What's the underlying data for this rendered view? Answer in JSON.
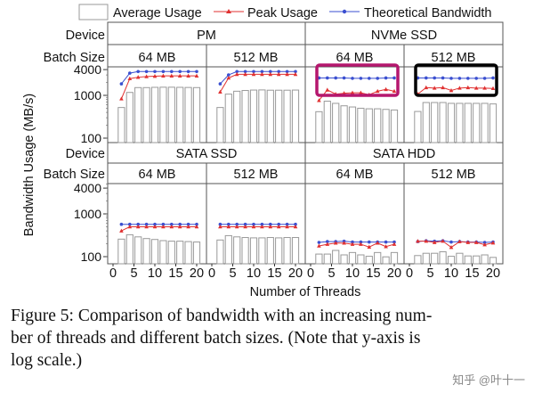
{
  "chart_data": {
    "type": "bar",
    "xlabel": "Number of Threads",
    "ylabel": "Bandwidth Usage (MB/s)",
    "yscale": "log",
    "ylim": [
      80,
      5000
    ],
    "yticks": [
      100,
      1000,
      4000
    ],
    "xticks": [
      0,
      5,
      10,
      15,
      20
    ],
    "x": [
      2,
      4,
      6,
      8,
      10,
      12,
      14,
      16,
      18,
      20
    ],
    "legend": {
      "position": "top",
      "entries": [
        "Average Usage",
        "Peak Usage",
        "Theoretical Bandwidth"
      ]
    },
    "colors": {
      "average": "#ffffff",
      "peak": "#e03030",
      "theoretical": "#3a4fd0",
      "highlight_magenta": "#b5176e",
      "highlight_black": "#000000"
    },
    "row_labels": {
      "device": "Device",
      "batch": "Batch Size"
    },
    "panels": [
      {
        "device": "PM",
        "batch": "64 MB",
        "row": 0,
        "average": [
          520,
          1170,
          1520,
          1520,
          1540,
          1550,
          1550,
          1540,
          1530,
          1520
        ],
        "peak": [
          830,
          2460,
          2650,
          2750,
          2800,
          2850,
          2850,
          2850,
          2850,
          2850
        ],
        "theoretical": [
          1860,
          3300,
          3600,
          3600,
          3600,
          3600,
          3600,
          3600,
          3600,
          3600
        ]
      },
      {
        "device": "PM",
        "batch": "512 MB",
        "row": 0,
        "average": [
          520,
          1070,
          1250,
          1300,
          1330,
          1340,
          1320,
          1320,
          1320,
          1330
        ],
        "peak": [
          1200,
          2550,
          3100,
          3100,
          3100,
          3100,
          3100,
          3100,
          3100,
          3100
        ],
        "theoretical": [
          1860,
          3000,
          3600,
          3600,
          3600,
          3600,
          3600,
          3600,
          3600,
          3600
        ]
      },
      {
        "device": "NVMe SSD",
        "batch": "64 MB",
        "row": 0,
        "highlight": "magenta",
        "average": [
          415,
          730,
          650,
          570,
          535,
          500,
          485,
          485,
          470,
          455
        ],
        "peak": [
          760,
          1340,
          1070,
          1120,
          1150,
          1150,
          1030,
          1250,
          1380,
          1250
        ],
        "theoretical": [
          2550,
          2550,
          2550,
          2550,
          2500,
          2500,
          2500,
          2500,
          2550,
          2550
        ]
      },
      {
        "device": "NVMe SSD",
        "batch": "512 MB",
        "row": 0,
        "highlight": "black",
        "average": [
          420,
          680,
          680,
          680,
          650,
          650,
          650,
          650,
          650,
          630
        ],
        "peak": [
          1070,
          1520,
          1480,
          1520,
          1300,
          1480,
          1520,
          1480,
          1480,
          1450
        ],
        "theoretical": [
          2550,
          2550,
          2550,
          2550,
          2500,
          2500,
          2500,
          2500,
          2500,
          2550
        ]
      },
      {
        "device": "SATA SSD",
        "batch": "64 MB",
        "row": 1,
        "average": [
          257,
          325,
          290,
          265,
          252,
          237,
          230,
          230,
          225,
          220
        ],
        "peak": [
          400,
          500,
          500,
          500,
          500,
          500,
          500,
          500,
          500,
          500
        ],
        "theoretical": [
          570,
          570,
          570,
          570,
          570,
          570,
          570,
          570,
          570,
          570
        ]
      },
      {
        "device": "SATA SSD",
        "batch": "512 MB",
        "row": 1,
        "average": [
          245,
          310,
          290,
          280,
          275,
          275,
          280,
          275,
          280,
          280
        ],
        "peak": [
          500,
          500,
          500,
          500,
          500,
          500,
          500,
          500,
          500,
          500
        ],
        "theoretical": [
          570,
          570,
          570,
          570,
          570,
          570,
          570,
          570,
          570,
          570
        ]
      },
      {
        "device": "SATA HDD",
        "batch": "64 MB",
        "row": 1,
        "average": [
          115,
          115,
          140,
          110,
          125,
          110,
          102,
          125,
          99,
          125
        ],
        "peak": [
          178,
          195,
          208,
          208,
          195,
          195,
          168,
          208,
          172,
          195
        ],
        "theoretical": [
          215,
          225,
          225,
          230,
          220,
          220,
          220,
          220,
          220,
          220
        ]
      },
      {
        "device": "SATA HDD",
        "batch": "512 MB",
        "row": 1,
        "average": [
          106,
          120,
          120,
          130,
          102,
          120,
          104,
          104,
          110,
          96
        ],
        "peak": [
          230,
          230,
          215,
          230,
          165,
          225,
          215,
          215,
          190,
          210
        ],
        "theoretical": [
          225,
          235,
          230,
          235,
          220,
          225,
          220,
          220,
          215,
          220
        ]
      }
    ]
  },
  "caption": {
    "lines": [
      "Figure 5: Comparison of bandwidth with an increasing num-",
      "ber of threads and different batch sizes. (Note that y-axis is",
      "log scale.)"
    ]
  },
  "watermark": "知乎 @叶十一"
}
